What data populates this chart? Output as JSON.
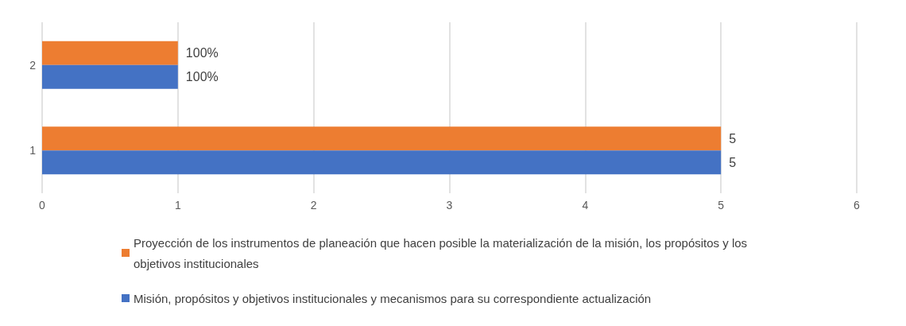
{
  "chart_data": {
    "type": "bar",
    "orientation": "horizontal",
    "categories": [
      "2",
      "1"
    ],
    "series": [
      {
        "name": "Proyección de los instrumentos de planeación que hacen posible la materialización de la misión, los propósitos y los objetivos institucionales",
        "color": "#ed7d31",
        "values": [
          1,
          5
        ],
        "value_labels": [
          "100%",
          "5"
        ]
      },
      {
        "name": "Misión, propósitos y objetivos institucionales y mecanismos para su correspondiente actualización",
        "color": "#4472c4",
        "values": [
          1,
          5
        ],
        "value_labels": [
          "100%",
          "5"
        ]
      }
    ],
    "xlim": [
      0,
      6
    ],
    "xticks": [
      0,
      1,
      2,
      3,
      4,
      5,
      6
    ],
    "grid": "x",
    "legend": "bottom"
  }
}
